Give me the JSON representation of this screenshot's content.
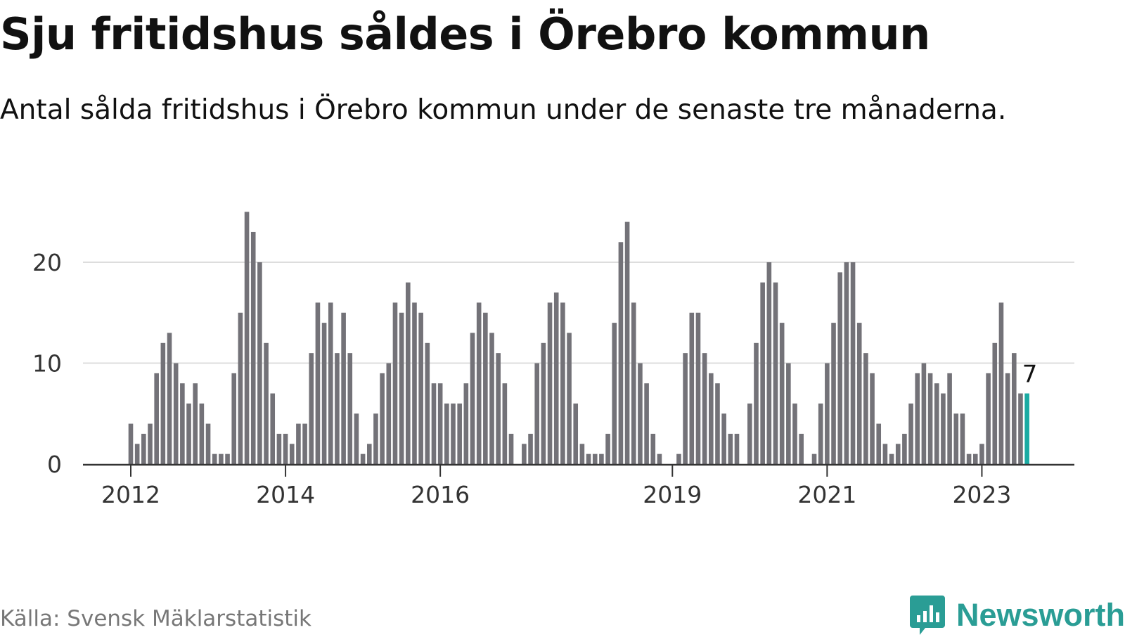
{
  "header": {
    "title": "Sju fritidshus såldes i Örebro kommun",
    "subtitle": "Antal sålda fritidshus i Örebro kommun under de senaste tre månaderna."
  },
  "footer": {
    "source": "Källa: Svensk Mäklarstatistik",
    "brand": "Newsworthy"
  },
  "colors": {
    "bar": "#737278",
    "highlight": "#1aaba3",
    "grid": "#dddddd",
    "axis": "#333333",
    "brand": "#2a9d95"
  },
  "chart_data": {
    "type": "bar",
    "title": "Sju fritidshus såldes i Örebro kommun",
    "subtitle": "Antal sålda fritidshus i Örebro kommun under de senaste tre månaderna.",
    "xlabel": "",
    "ylabel": "",
    "ylim": [
      0,
      25.5
    ],
    "yticks": [
      0,
      10,
      20
    ],
    "grid": true,
    "x_start": "2012-01",
    "x_end": "2023-08",
    "frequency": "monthly",
    "xticks": [
      {
        "label": "2012",
        "x": "2012-01"
      },
      {
        "label": "2014",
        "x": "2014-01"
      },
      {
        "label": "2016",
        "x": "2016-01"
      },
      {
        "label": "2019",
        "x": "2019-01"
      },
      {
        "label": "2021",
        "x": "2021-01"
      },
      {
        "label": "2023",
        "x": "2023-01"
      }
    ],
    "values": [
      4,
      2,
      3,
      4,
      9,
      12,
      13,
      10,
      8,
      6,
      8,
      6,
      4,
      1,
      1,
      1,
      9,
      15,
      25,
      23,
      20,
      12,
      7,
      3,
      3,
      2,
      4,
      4,
      11,
      16,
      14,
      16,
      11,
      15,
      11,
      5,
      1,
      2,
      5,
      9,
      10,
      16,
      15,
      18,
      16,
      15,
      12,
      8,
      8,
      6,
      6,
      6,
      8,
      13,
      16,
      15,
      13,
      11,
      8,
      3,
      null,
      2,
      3,
      10,
      12,
      16,
      17,
      16,
      13,
      6,
      2,
      1,
      1,
      1,
      3,
      14,
      22,
      24,
      16,
      10,
      8,
      3,
      1,
      null,
      null,
      1,
      11,
      15,
      15,
      11,
      9,
      8,
      5,
      3,
      3,
      null,
      6,
      12,
      18,
      20,
      18,
      14,
      10,
      6,
      3,
      null,
      1,
      6,
      10,
      14,
      19,
      20,
      20,
      14,
      11,
      9,
      4,
      2,
      1,
      2,
      3,
      6,
      9,
      10,
      9,
      8,
      7,
      9,
      5,
      5,
      1,
      1,
      2,
      9,
      12,
      16,
      9,
      11,
      7,
      7
    ],
    "highlight_last": true,
    "annotation": {
      "label": "7",
      "value": 7
    }
  }
}
